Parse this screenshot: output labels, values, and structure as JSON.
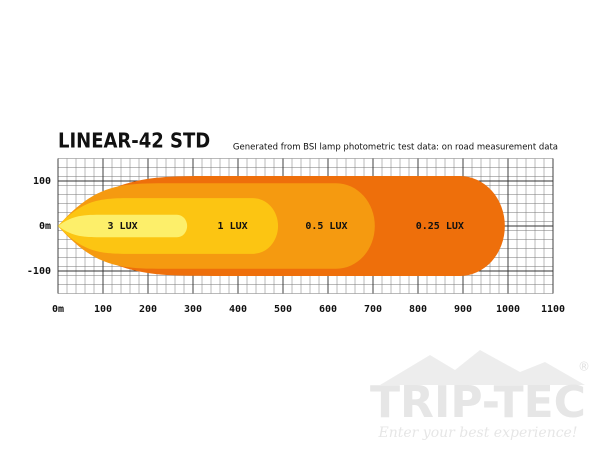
{
  "chart_data": {
    "type": "beam",
    "title": "LINEAR-42 STD",
    "subtitle": "Generated from BSI lamp photometric test data: on road measurement data",
    "series": [
      {
        "name": "3 LUX",
        "color": "#fdef6a",
        "reach": 287,
        "half_width": 25
      },
      {
        "name": "1 LUX",
        "color": "#fcc512",
        "reach": 489,
        "half_width": 62
      },
      {
        "name": "0.5 LUX",
        "color": "#f59a10",
        "reach": 704,
        "half_width": 95
      },
      {
        "name": "0.25 LUX",
        "color": "#ee6f0b",
        "reach": 993,
        "half_width": 111
      }
    ],
    "xlim": [
      0,
      1100
    ],
    "ylim": [
      -150,
      150
    ],
    "xticks": [
      {
        "value": 0,
        "label": "0m"
      },
      100,
      200,
      300,
      400,
      500,
      600,
      700,
      800,
      900,
      1000,
      1100
    ],
    "yticks": [
      100,
      {
        "value": 0,
        "label": "0m"
      },
      -100
    ],
    "grid": true,
    "minor_grid_step": 20,
    "watermark": {
      "brand": "TRIP-TEC",
      "slogan": "Enter your best experience!",
      "mark": "®"
    }
  }
}
